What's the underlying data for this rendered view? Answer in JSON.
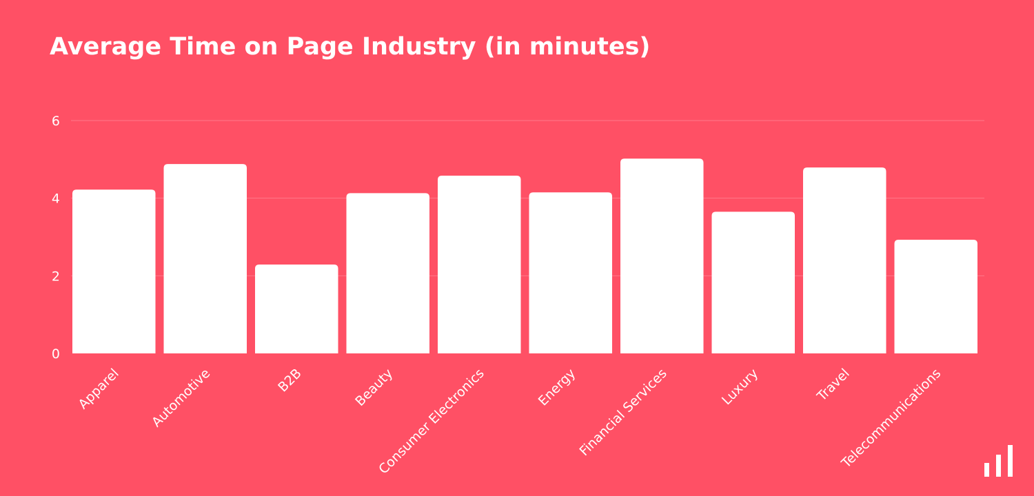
{
  "chart_data": {
    "type": "bar",
    "title": "Average Time on Page Industry (in minutes)",
    "categories": [
      "Apparel",
      "Automotive",
      "B2B",
      "Beauty",
      "Consumer Electronics",
      "Energy",
      "Financial Services",
      "Luxury",
      "Travel",
      "Telecommunications"
    ],
    "values": [
      4.22,
      4.88,
      2.29,
      4.13,
      4.58,
      4.15,
      5.02,
      3.65,
      4.79,
      2.93
    ],
    "ylim": [
      0,
      6
    ],
    "yticks": [
      0,
      2,
      4,
      6
    ],
    "xlabel": "",
    "ylabel": "",
    "grid": true,
    "colors": {
      "background": "#FF5065",
      "bar": "#FFFFFF",
      "text": "#FFFFFF",
      "grid": "#FF7A8A"
    }
  },
  "brand": {
    "icon": "bar-chart-logo-icon"
  }
}
